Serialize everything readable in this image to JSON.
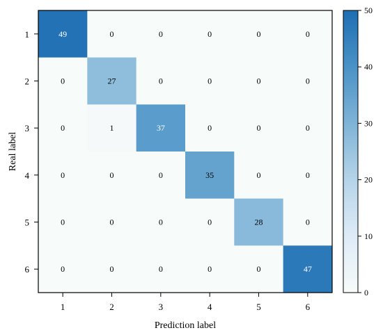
{
  "chart_data": {
    "type": "heatmap",
    "title": "",
    "xlabel": "Prediction label",
    "ylabel": "Real label",
    "x_categories": [
      "1",
      "2",
      "3",
      "4",
      "5",
      "6"
    ],
    "y_categories": [
      "1",
      "2",
      "3",
      "4",
      "5",
      "6"
    ],
    "matrix": [
      [
        49,
        0,
        0,
        0,
        0,
        0
      ],
      [
        0,
        27,
        0,
        0,
        0,
        0
      ],
      [
        0,
        1,
        37,
        0,
        0,
        0
      ],
      [
        0,
        0,
        0,
        35,
        0,
        0
      ],
      [
        0,
        0,
        0,
        0,
        28,
        0
      ],
      [
        0,
        0,
        0,
        0,
        0,
        47
      ]
    ],
    "colorbar": {
      "range": [
        0,
        50
      ],
      "ticks": [
        "0",
        "10",
        "20",
        "30",
        "40",
        "50"
      ],
      "colormap": "Blues",
      "color_low": "#f7fbf9",
      "color_high": "#1f6eb3"
    }
  }
}
